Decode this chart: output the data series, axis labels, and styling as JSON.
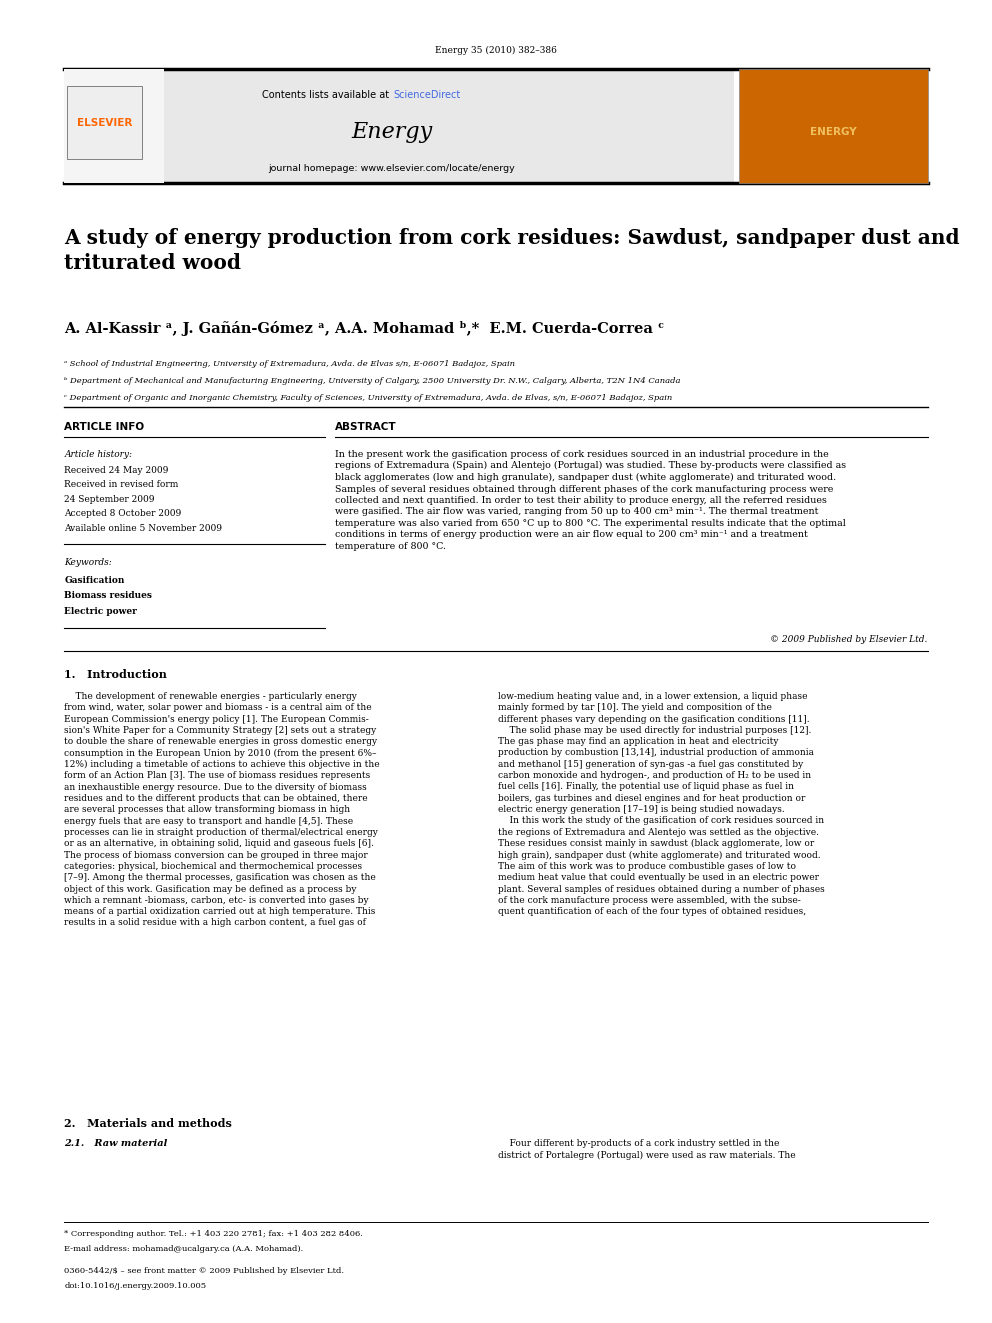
{
  "page_width": 9.92,
  "page_height": 13.23,
  "bg_color": "#ffffff",
  "journal_ref": "Energy 35 (2010) 382–386",
  "header_bg": "#e8e8e8",
  "header_text_sciencedirect_color": "#4169e1",
  "journal_name": "Energy",
  "journal_homepage": "journal homepage: www.elsevier.com/locate/energy",
  "elsevier_color": "#ff6600",
  "paper_title": "A study of energy production from cork residues: Sawdust, sandpaper dust and\ntriturated wood",
  "authors": "A. Al-Kassir ᵃ, J. Gañán-Gómez ᵃ, A.A. Mohamad ᵇ,*  E.M. Cuerda-Correa ᶜ",
  "affil_a": "ᵃ School of Industrial Engineering, University of Extremadura, Avda. de Elvas s/n, E-06071 Badajoz, Spain",
  "affil_b": "ᵇ Department of Mechanical and Manufacturing Engineering, University of Calgary, 2500 University Dr. N.W., Calgary, Alberta, T2N 1N4 Canada",
  "affil_c": "ᶜ Department of Organic and Inorganic Chemistry, Faculty of Sciences, University of Extremadura, Avda. de Elvas, s/n, E-06071 Badajoz, Spain",
  "article_info_header": "ARTICLE INFO",
  "abstract_header": "ABSTRACT",
  "article_history_label": "Article history:",
  "received_1": "Received 24 May 2009",
  "received_2": "Received in revised form",
  "received_2b": "24 September 2009",
  "accepted": "Accepted 8 October 2009",
  "available": "Available online 5 November 2009",
  "keywords_label": "Keywords:",
  "keyword_1": "Gasification",
  "keyword_2": "Biomass residues",
  "keyword_3": "Electric power",
  "abstract_text": "In the present work the gasification process of cork residues sourced in an industrial procedure in the\nregions of Extremadura (Spain) and Alentejo (Portugal) was studied. These by-products were classified as\nblack agglomerates (low and high granulate), sandpaper dust (white agglomerate) and triturated wood.\nSamples of several residues obtained through different phases of the cork manufacturing process were\ncollected and next quantified. In order to test their ability to produce energy, all the referred residues\nwere gasified. The air flow was varied, ranging from 50 up to 400 cm³ min⁻¹. The thermal treatment\ntemperature was also varied from 650 °C up to 800 °C. The experimental results indicate that the optimal\nconditions in terms of energy production were an air flow equal to 200 cm³ min⁻¹ and a treatment\ntemperature of 800 °C.",
  "copyright": "© 2009 Published by Elsevier Ltd.",
  "intro_header": "1.   Introduction",
  "intro_col1": "    The development of renewable energies - particularly energy\nfrom wind, water, solar power and biomass - is a central aim of the\nEuropean Commission's energy policy [1]. The European Commis-\nsion's White Paper for a Community Strategy [2] sets out a strategy\nto double the share of renewable energies in gross domestic energy\nconsumption in the European Union by 2010 (from the present 6%–\n12%) including a timetable of actions to achieve this objective in the\nform of an Action Plan [3]. The use of biomass residues represents\nan inexhaustible energy resource. Due to the diversity of biomass\nresidues and to the different products that can be obtained, there\nare several processes that allow transforming biomass in high\nenergy fuels that are easy to transport and handle [4,5]. These\nprocesses can lie in straight production of thermal/electrical energy\nor as an alternative, in obtaining solid, liquid and gaseous fuels [6].\nThe process of biomass conversion can be grouped in three major\ncategories: physical, biochemical and thermochemical processes\n[7–9]. Among the thermal processes, gasification was chosen as the\nobject of this work. Gasification may be defined as a process by\nwhich a remnant -biomass, carbon, etc- is converted into gases by\nmeans of a partial oxidization carried out at high temperature. This\nresults in a solid residue with a high carbon content, a fuel gas of",
  "intro_col2": "low-medium heating value and, in a lower extension, a liquid phase\nmainly formed by tar [10]. The yield and composition of the\ndifferent phases vary depending on the gasification conditions [11].\n    The solid phase may be used directly for industrial purposes [12].\nThe gas phase may find an application in heat and electricity\nproduction by combustion [13,14], industrial production of ammonia\nand methanol [15] generation of syn-gas -a fuel gas constituted by\ncarbon monoxide and hydrogen-, and production of H₂ to be used in\nfuel cells [16]. Finally, the potential use of liquid phase as fuel in\nboilers, gas turbines and diesel engines and for heat production or\nelectric energy generation [17–19] is being studied nowadays.\n    In this work the study of the gasification of cork residues sourced in\nthe regions of Extremadura and Alentejo was settled as the objective.\nThese residues consist mainly in sawdust (black agglomerate, low or\nhigh grain), sandpaper dust (white agglomerate) and triturated wood.\nThe aim of this work was to produce combustible gases of low to\nmedium heat value that could eventually be used in an electric power\nplant. Several samples of residues obtained during a number of phases\nof the cork manufacture process were assembled, with the subse-\nquent quantification of each of the four types of obtained residues,",
  "section2_header": "2.   Materials and methods",
  "section21_header": "2.1.   Raw material",
  "section21_col2": "    Four different by-products of a cork industry settled in the\ndistrict of Portalegre (Portugal) were used as raw materials. The",
  "footnote_star": "* Corresponding author. Tel.: +1 403 220 2781; fax: +1 403 282 8406.",
  "footnote_email": "E-mail address: mohamad@ucalgary.ca (A.A. Mohamad).",
  "footnote_issn": "0360-5442/$ – see front matter © 2009 Published by Elsevier Ltd.",
  "footnote_doi": "doi:10.1016/j.energy.2009.10.005"
}
